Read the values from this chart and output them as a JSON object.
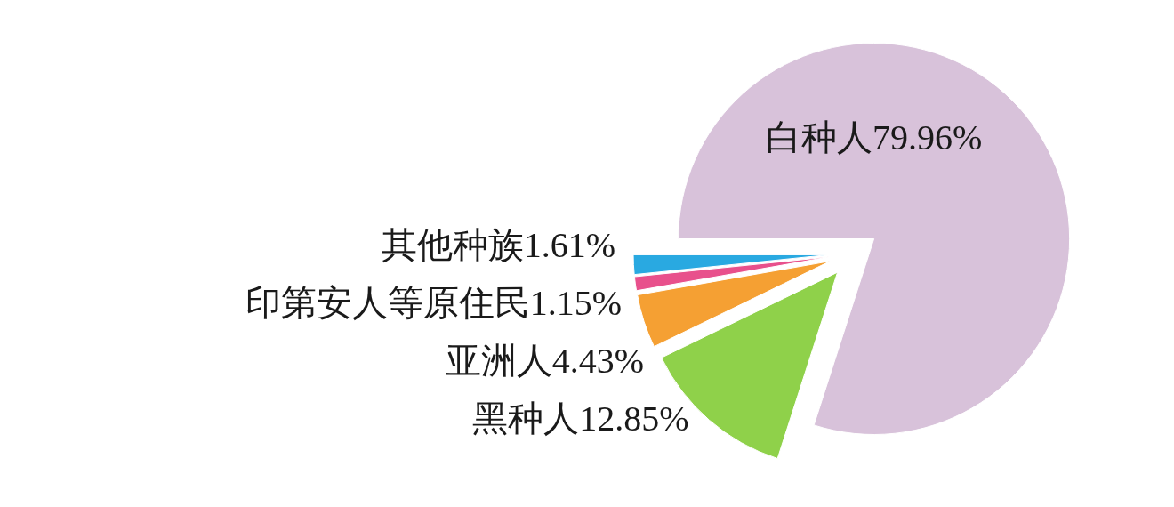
{
  "chart_data": {
    "type": "pie",
    "categories": [
      "白种人",
      "黑种人",
      "亚洲人",
      "印第安人等原住民",
      "其他种族"
    ],
    "values": [
      79.96,
      12.85,
      4.43,
      1.15,
      1.61
    ],
    "value_labels": [
      "79.96%",
      "12.85%",
      "4.43%",
      "1.15%",
      "1.61%"
    ],
    "colors": [
      "#d8c2da",
      "#8fd14a",
      "#f5a033",
      "#e8508c",
      "#29a9e1"
    ]
  }
}
